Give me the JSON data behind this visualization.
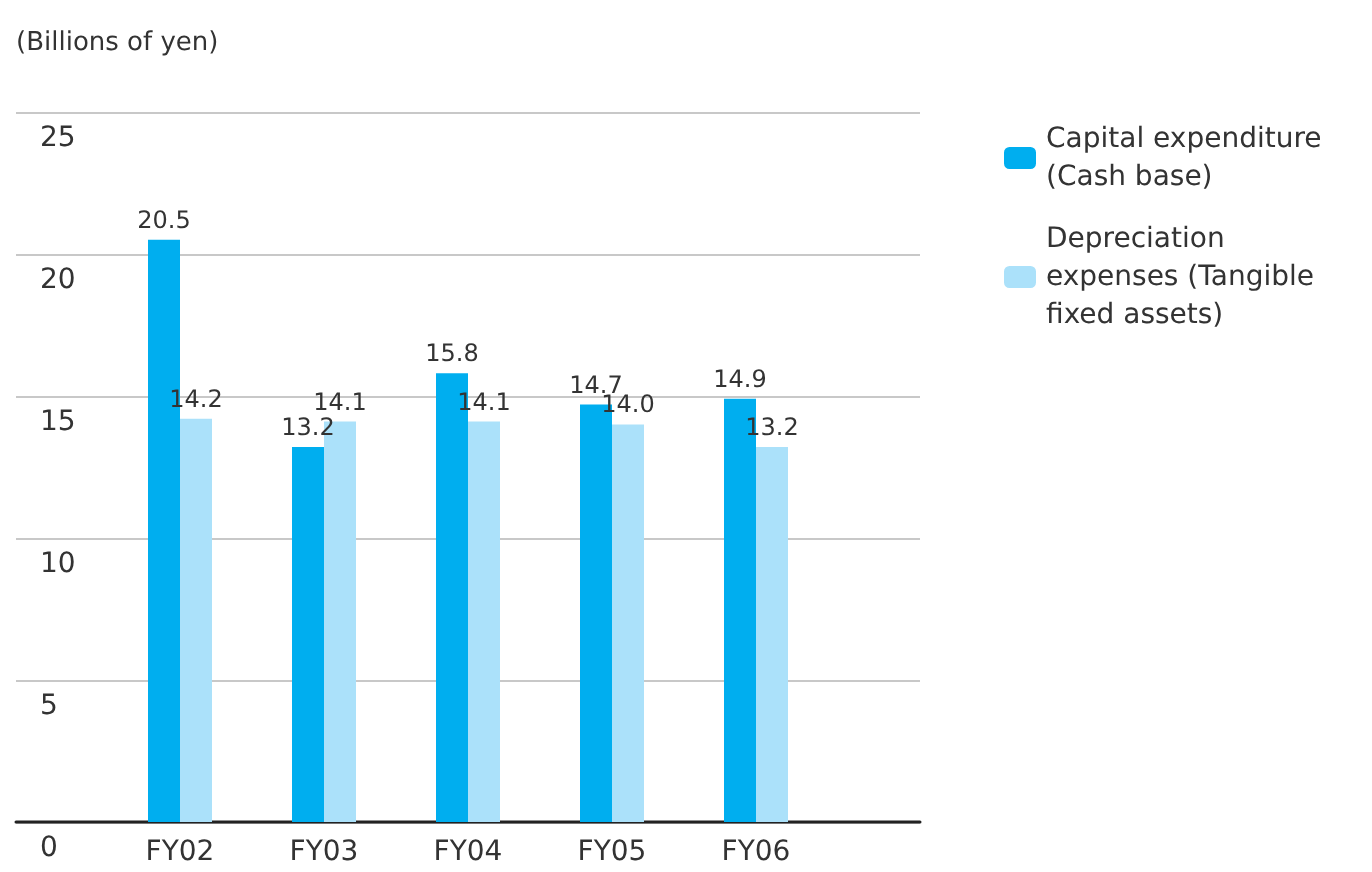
{
  "chart_data": {
    "type": "bar",
    "ylabel": "(Billions of yen)",
    "categories": [
      "FY02",
      "FY03",
      "FY04",
      "FY05",
      "FY06"
    ],
    "series": [
      {
        "name": "Capital expenditure (Cash base)",
        "color": "#00aeef",
        "values": [
          20.5,
          13.2,
          15.8,
          14.7,
          14.9
        ]
      },
      {
        "name": "Depreciation expenses (Tangible fixed assets)",
        "color": "#abe1fa",
        "values": [
          14.2,
          14.1,
          14.1,
          14.0,
          13.2
        ],
        "value_labels": [
          "14.2",
          "14.1",
          "14.1",
          "14.0",
          "13.2"
        ]
      }
    ],
    "ylim": [
      0,
      25
    ],
    "yticks": [
      0,
      5,
      10,
      15,
      20,
      25
    ],
    "grid": "y",
    "legend": "right",
    "data_labels": true
  }
}
